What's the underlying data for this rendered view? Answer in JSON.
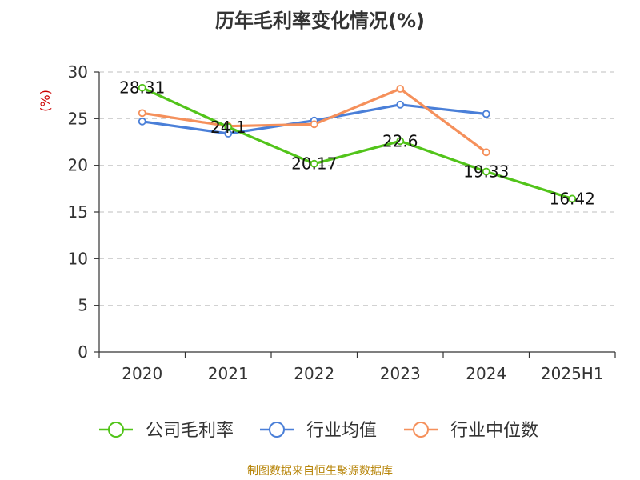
{
  "title": "历年毛利率变化情况(%)",
  "source": "制图数据来自恒生聚源数据库",
  "chart_data": {
    "type": "line",
    "title": "历年毛利率变化情况(%)",
    "ylabel": "(%)",
    "ylim": [
      0,
      30
    ],
    "yticks": [
      0,
      5,
      10,
      15,
      20,
      25,
      30
    ],
    "categories": [
      "2020",
      "2021",
      "2022",
      "2023",
      "2024",
      "2025H1"
    ],
    "grid": true,
    "legend_position": "bottom",
    "series": [
      {
        "name": "公司毛利率",
        "color": "#52c41a",
        "values": [
          28.31,
          24.1,
          20.17,
          22.6,
          19.33,
          16.42
        ],
        "labels": [
          "28.31",
          "24.1",
          "20.17",
          "22.6",
          "19.33",
          "16.42"
        ]
      },
      {
        "name": "行业均值",
        "color": "#4a7fd8",
        "values": [
          24.7,
          23.4,
          24.8,
          26.5,
          25.5,
          null
        ]
      },
      {
        "name": "行业中位数",
        "color": "#f5905b",
        "values": [
          25.6,
          24.2,
          24.4,
          28.2,
          21.4,
          null
        ]
      }
    ]
  }
}
